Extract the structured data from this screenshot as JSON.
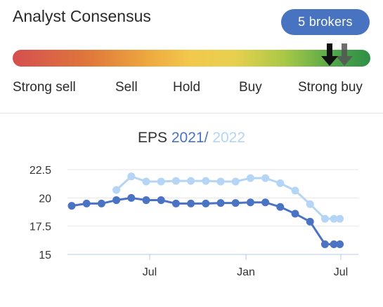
{
  "consensus": {
    "title": "Analyst Consensus",
    "brokers_badge": "5 brokers",
    "scale_labels": [
      "Strong sell",
      "Sell",
      "Hold",
      "Buy",
      "Strong buy"
    ],
    "marker_current_icon": "arrow-down-icon",
    "marker_previous_icon": "arrow-down-icon"
  },
  "chart_data": {
    "type": "line",
    "title": "EPS 2021 / 2022",
    "title_parts": {
      "prefix": "EPS",
      "year1": "2021",
      "sep": "/",
      "year2": "2022"
    },
    "xlabel": "",
    "ylabel": "",
    "ylim": [
      15,
      23.3
    ],
    "y_ticks": [
      "15",
      "17.5",
      "20",
      "22.5"
    ],
    "x_ticks": [
      "Jul",
      "Jan",
      "Jul"
    ],
    "x": [
      0,
      1,
      2,
      3,
      4,
      5,
      6,
      7,
      8,
      9,
      10,
      11,
      12,
      13,
      14,
      15,
      16,
      17,
      18,
      18.6
    ],
    "series": [
      {
        "name": "2021",
        "color": "#4a73c4",
        "values": [
          null,
          null,
          null,
          null,
          null,
          null,
          null,
          null,
          null,
          null,
          null,
          null,
          null,
          null,
          null,
          null,
          null,
          null,
          null,
          null
        ],
        "points": [
          [
            0,
            19.3
          ],
          [
            1,
            19.5
          ],
          [
            2,
            19.5
          ],
          [
            3,
            19.8
          ],
          [
            4,
            20.0
          ],
          [
            5,
            19.8
          ],
          [
            6,
            19.8
          ],
          [
            7,
            19.5
          ],
          [
            8,
            19.5
          ],
          [
            9,
            19.5
          ],
          [
            10,
            19.55
          ],
          [
            11,
            19.55
          ],
          [
            12,
            19.6
          ],
          [
            13,
            19.6
          ],
          [
            14,
            19.2
          ],
          [
            15,
            18.6
          ],
          [
            16,
            17.9
          ],
          [
            17,
            15.9
          ],
          [
            17.6,
            15.9
          ],
          [
            18,
            15.9
          ]
        ]
      },
      {
        "name": "2022",
        "color": "#b4d5f5",
        "points": [
          [
            3,
            20.7
          ],
          [
            4,
            21.9
          ],
          [
            5,
            21.45
          ],
          [
            6,
            21.45
          ],
          [
            7,
            21.5
          ],
          [
            8,
            21.5
          ],
          [
            9,
            21.5
          ],
          [
            10,
            21.45
          ],
          [
            11,
            21.45
          ],
          [
            12,
            21.75
          ],
          [
            13,
            21.75
          ],
          [
            14,
            21.3
          ],
          [
            15,
            20.65
          ],
          [
            16,
            19.45
          ],
          [
            17,
            18.15
          ],
          [
            17.6,
            18.15
          ],
          [
            18,
            18.15
          ]
        ]
      }
    ]
  }
}
